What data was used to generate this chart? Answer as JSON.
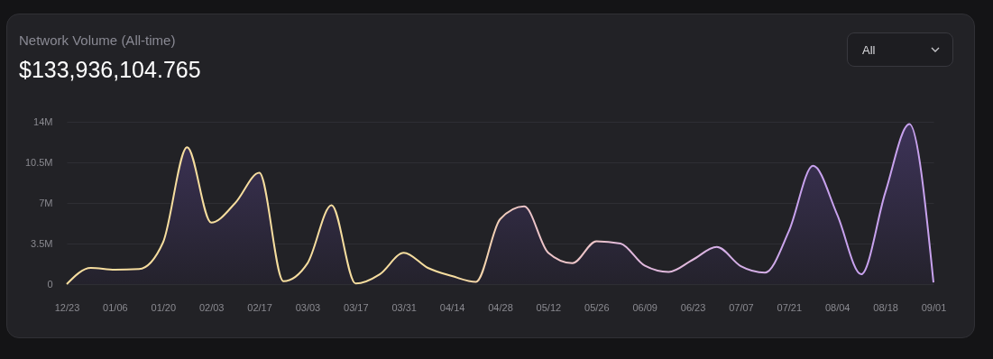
{
  "chart_data": {
    "type": "area",
    "title": "Network Volume (All-time)",
    "subtitle": "$133,936,104.765",
    "annotations": [
      "All"
    ],
    "categories": [
      "12/23",
      null,
      "01/06",
      null,
      "01/20",
      null,
      "02/03",
      null,
      "02/17",
      null,
      "03/03",
      null,
      "03/17",
      null,
      "03/31",
      null,
      "04/14",
      null,
      "04/28",
      null,
      "05/12",
      null,
      "05/26",
      null,
      "06/09",
      null,
      "06/23",
      null,
      "07/07",
      null,
      "07/21",
      null,
      "08/04",
      null,
      "08/18",
      null,
      "09/01"
    ],
    "series": [
      {
        "colors": [
          "#f6dd9e",
          "#f6dd9e",
          "#f6dd9e",
          "#f6dd9e",
          "#f6dd9e",
          "#f6dd9e",
          "#f6dd9e",
          "#f6dd9e",
          "#f6dd9e",
          "#f6dd9e",
          "#f6dd9e",
          "#f6dd9e",
          "#f6dd9e",
          "#f6dd9e",
          "#f6dd9e",
          "#f6dd9e",
          "#f6dd9e",
          "#f4d5a8",
          "#f0cdb8",
          "#ecc4c8",
          "#ecc4c8",
          "#ecc4c8",
          "#ecc4c8",
          "#e0b8dc",
          "#e0b8dc",
          "#e0b8dc",
          "#e0b8dc",
          "#d4aee6",
          "#d4aee6",
          "#d4aee6",
          "#c8a2ee",
          "#c8a2ee",
          "#c8a2ee",
          "#c8a2ee",
          "#c8a2ee",
          "#c8a2ee",
          "#c8a2ee"
        ],
        "values": [
          0,
          1.4,
          1.25,
          1.3,
          3.6,
          11.8,
          5.3,
          7.0,
          9.6,
          0.25,
          1.8,
          6.8,
          0.05,
          0.85,
          2.7,
          1.4,
          0.7,
          0.2,
          5.6,
          6.7,
          2.7,
          1.8,
          3.7,
          3.5,
          1.6,
          1.05,
          2.1,
          3.2,
          1.55,
          1.0,
          4.6,
          10.2,
          6.0,
          0.85,
          7.9,
          13.8,
          0.15
        ]
      }
    ],
    "ylim": [
      0,
      14
    ],
    "yticks": [
      0,
      {
        "value": 3.5,
        "label": "3.5M"
      },
      {
        "value": 7,
        "label": "7M"
      },
      {
        "value": 10.5,
        "label": "10.5M"
      },
      {
        "value": 14,
        "label": "14M"
      }
    ],
    "grid": "y"
  }
}
